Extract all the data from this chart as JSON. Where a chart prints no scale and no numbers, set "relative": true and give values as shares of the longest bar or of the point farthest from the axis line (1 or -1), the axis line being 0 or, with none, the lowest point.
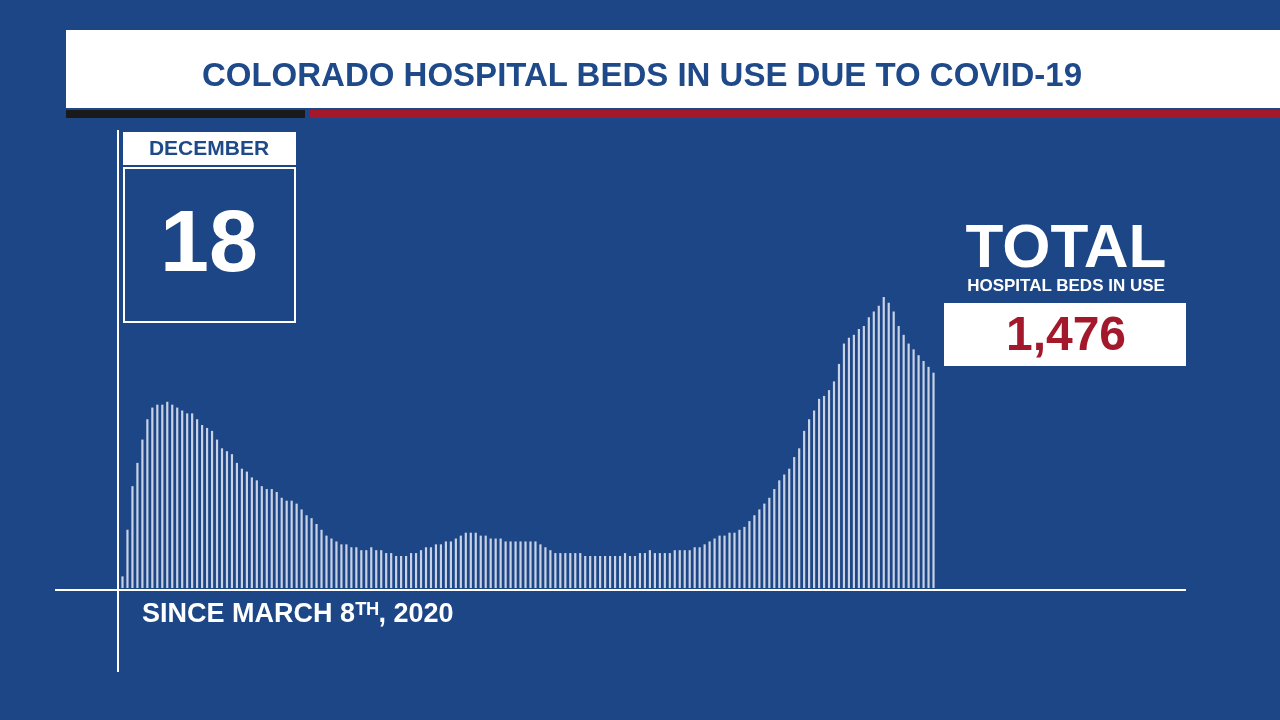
{
  "chart_data": {
    "type": "bar",
    "title": "COLORADO HOSPITAL BEDS IN USE DUE TO COVID-19",
    "relative": true,
    "color": "#c8d2e4",
    "categories": [
      null,
      null,
      null,
      null,
      null,
      null,
      null,
      null,
      null,
      null,
      null,
      null,
      null,
      null,
      null,
      null,
      null,
      null,
      null,
      null,
      null,
      null,
      null,
      null,
      null,
      null,
      null,
      null,
      null,
      null,
      null,
      null,
      null,
      null,
      null,
      null,
      null,
      null,
      null,
      null,
      null,
      null,
      null,
      null,
      null,
      null,
      null,
      null,
      null,
      null,
      null,
      null,
      null,
      null,
      null,
      null,
      null,
      null,
      null,
      null,
      null,
      null,
      null,
      null,
      null,
      null,
      null,
      null,
      null,
      null,
      null,
      null,
      null,
      null,
      null,
      null,
      null,
      null,
      null,
      null,
      null,
      null,
      null,
      null,
      null,
      null,
      null,
      null,
      null,
      null,
      null,
      null,
      null,
      null,
      null,
      null,
      null,
      null,
      null,
      null,
      null,
      null,
      null,
      null,
      null,
      null,
      null,
      null,
      null,
      null,
      null,
      null,
      null,
      null,
      null,
      null,
      null,
      null,
      null,
      null,
      null,
      null,
      null,
      null,
      null,
      null,
      null,
      null,
      null,
      null,
      null,
      null,
      null,
      null,
      null,
      null,
      null,
      null,
      null,
      null,
      null,
      null,
      null,
      null,
      null,
      null,
      null,
      null,
      null,
      null,
      null,
      null,
      null,
      null,
      null,
      null,
      null,
      null,
      null,
      null,
      null,
      null,
      null,
      null
    ],
    "values": [
      0.04,
      0.2,
      0.35,
      0.43,
      0.51,
      0.58,
      0.62,
      0.63,
      0.63,
      0.64,
      0.63,
      0.62,
      0.61,
      0.6,
      0.6,
      0.58,
      0.56,
      0.55,
      0.54,
      0.51,
      0.48,
      0.47,
      0.46,
      0.43,
      0.41,
      0.4,
      0.38,
      0.37,
      0.35,
      0.34,
      0.34,
      0.33,
      0.31,
      0.3,
      0.3,
      0.29,
      0.27,
      0.25,
      0.24,
      0.22,
      0.2,
      0.18,
      0.17,
      0.16,
      0.15,
      0.15,
      0.14,
      0.14,
      0.13,
      0.13,
      0.14,
      0.13,
      0.13,
      0.12,
      0.12,
      0.11,
      0.11,
      0.11,
      0.12,
      0.12,
      0.13,
      0.14,
      0.14,
      0.15,
      0.15,
      0.16,
      0.16,
      0.17,
      0.18,
      0.19,
      0.19,
      0.19,
      0.18,
      0.18,
      0.17,
      0.17,
      0.17,
      0.16,
      0.16,
      0.16,
      0.16,
      0.16,
      0.16,
      0.16,
      0.15,
      0.14,
      0.13,
      0.12,
      0.12,
      0.12,
      0.12,
      0.12,
      0.12,
      0.11,
      0.11,
      0.11,
      0.11,
      0.11,
      0.11,
      0.11,
      0.11,
      0.12,
      0.11,
      0.11,
      0.12,
      0.12,
      0.13,
      0.12,
      0.12,
      0.12,
      0.12,
      0.13,
      0.13,
      0.13,
      0.13,
      0.14,
      0.14,
      0.15,
      0.16,
      0.17,
      0.18,
      0.18,
      0.19,
      0.19,
      0.2,
      0.21,
      0.23,
      0.25,
      0.27,
      0.29,
      0.31,
      0.34,
      0.37,
      0.39,
      0.41,
      0.45,
      0.48,
      0.54,
      0.58,
      0.61,
      0.65,
      0.66,
      0.68,
      0.71,
      0.77,
      0.84,
      0.86,
      0.87,
      0.89,
      0.9,
      0.93,
      0.95,
      0.97,
      1,
      0.98,
      0.95,
      0.9,
      0.87,
      0.84,
      0.82,
      0.8,
      0.78,
      0.76,
      0.74
    ],
    "annotations": [
      "DECEMBER",
      "18",
      "TOTAL",
      "HOSPITAL BEDS IN USE",
      "1,476",
      "SINCE MARCH 8ᵀᴴ, 2020"
    ]
  }
}
